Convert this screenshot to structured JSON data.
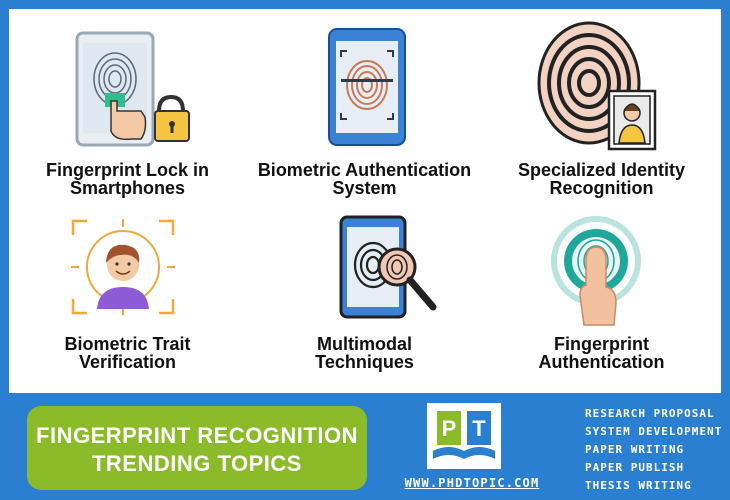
{
  "topics": [
    {
      "line1": "Fingerprint Lock in",
      "line2": "Smartphones",
      "icon": "smartphone-fingerprint-lock-icon"
    },
    {
      "line1": "Biometric Authentication",
      "line2": "System",
      "icon": "phone-fingerprint-scan-icon"
    },
    {
      "line1": "Specialized Identity",
      "line2": "Recognition",
      "icon": "fingerprint-id-card-icon"
    },
    {
      "line1": "Biometric Trait",
      "line2": "Verification",
      "icon": "face-scan-icon"
    },
    {
      "line1": "Multimodal",
      "line2": "Techniques",
      "icon": "phone-magnifier-fingerprint-icon"
    },
    {
      "line1": "Fingerprint",
      "line2": "Authentication",
      "icon": "finger-touch-sensor-icon"
    }
  ],
  "banner": {
    "line1": "FINGERPRINT RECOGNITION",
    "line2": "TRENDING TOPICS"
  },
  "logo": {
    "letters": [
      "P",
      "T"
    ]
  },
  "website": "WWW.PHDTOPIC.COM",
  "services": [
    "RESEARCH PROPOSAL",
    "SYSTEM DEVELOPMENT",
    "PAPER WRITING",
    "PAPER PUBLISH",
    "THESIS WRITING"
  ],
  "colors": {
    "background": "#2b7fd0",
    "banner": "#8cbb2a",
    "panel": "#ffffff"
  }
}
